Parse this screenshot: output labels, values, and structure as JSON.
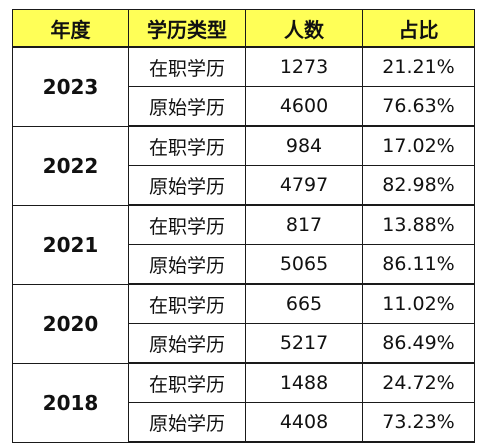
{
  "header": {
    "year": "年度",
    "type": "学历类型",
    "count": "人数",
    "ratio": "占比"
  },
  "highlight_color": "#ffff57",
  "groups": [
    {
      "year": "2023",
      "rows": [
        {
          "type": "在职学历",
          "count": "1273",
          "ratio": "21.21%"
        },
        {
          "type": "原始学历",
          "count": "4600",
          "ratio": "76.63%"
        }
      ]
    },
    {
      "year": "2022",
      "rows": [
        {
          "type": "在职学历",
          "count": "984",
          "ratio": "17.02%"
        },
        {
          "type": "原始学历",
          "count": "4797",
          "ratio": "82.98%"
        }
      ]
    },
    {
      "year": "2021",
      "rows": [
        {
          "type": "在职学历",
          "count": "817",
          "ratio": "13.88%"
        },
        {
          "type": "原始学历",
          "count": "5065",
          "ratio": "86.11%"
        }
      ]
    },
    {
      "year": "2020",
      "rows": [
        {
          "type": "在职学历",
          "count": "665",
          "ratio": "11.02%"
        },
        {
          "type": "原始学历",
          "count": "5217",
          "ratio": "86.49%"
        }
      ]
    },
    {
      "year": "2018",
      "rows": [
        {
          "type": "在职学历",
          "count": "1488",
          "ratio": "24.72%"
        },
        {
          "type": "原始学历",
          "count": "4408",
          "ratio": "73.23%"
        }
      ]
    }
  ]
}
